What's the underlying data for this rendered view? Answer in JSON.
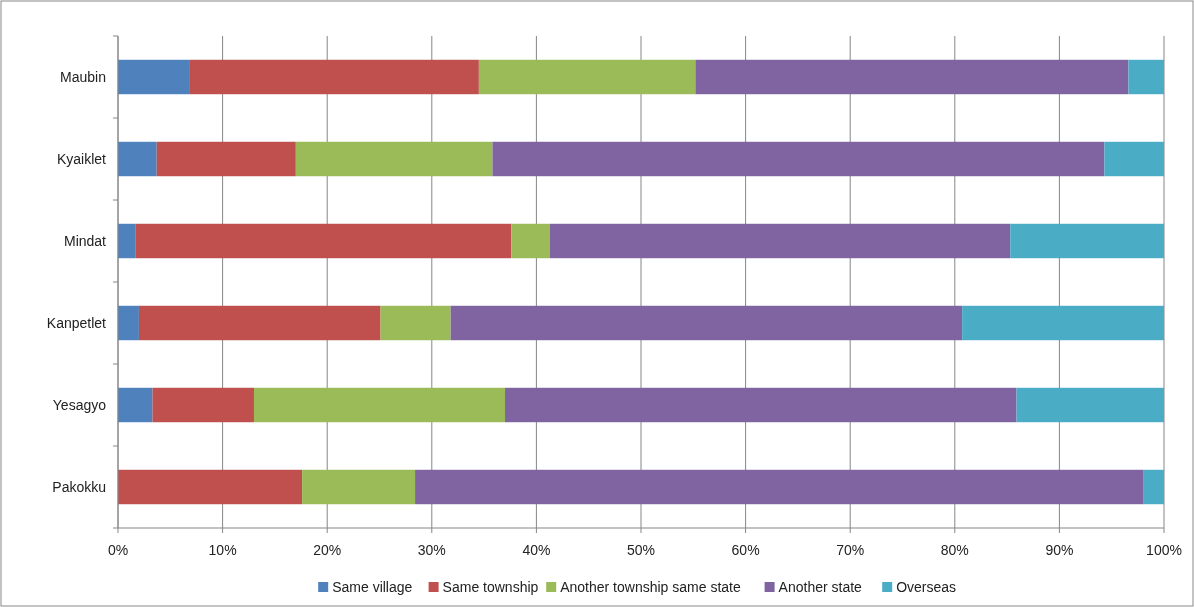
{
  "chart_data": {
    "type": "bar",
    "orientation": "horizontal",
    "stacked": true,
    "categories": [
      "Maubin",
      "Kyaiklet",
      "Mindat",
      "Kanpetlet",
      "Yesagyo",
      "Pakokku"
    ],
    "series": [
      {
        "name": "Same village",
        "color": "#4f81bd",
        "values": [
          6.8,
          3.7,
          1.7,
          2.0,
          3.3,
          0
        ]
      },
      {
        "name": "Same township",
        "color": "#c0504d",
        "values": [
          27.7,
          13.3,
          35.9,
          23.1,
          9.7,
          17.6
        ]
      },
      {
        "name": "Another township same state",
        "color": "#9bbb59",
        "values": [
          20.7,
          18.8,
          3.7,
          6.7,
          24.0,
          10.8
        ]
      },
      {
        "name": "Another state",
        "color": "#8064a2",
        "values": [
          41.4,
          58.5,
          44.0,
          48.9,
          48.9,
          69.6
        ]
      },
      {
        "name": "Overseas",
        "color": "#4bacc6",
        "values": [
          3.4,
          5.7,
          14.7,
          19.3,
          14.1,
          2.0
        ]
      }
    ],
    "xlim": [
      0,
      100
    ],
    "xticks": [
      {
        "value": 0,
        "label": "0%"
      },
      {
        "value": 10,
        "label": "10%"
      },
      {
        "value": 20,
        "label": "20%"
      },
      {
        "value": 30,
        "label": "30%"
      },
      {
        "value": 40,
        "label": "40%"
      },
      {
        "value": 50,
        "label": "50%"
      },
      {
        "value": 60,
        "label": "60%"
      },
      {
        "value": 70,
        "label": "70%"
      },
      {
        "value": 80,
        "label": "80%"
      },
      {
        "value": 90,
        "label": "90%"
      },
      {
        "value": 100,
        "label": "100%"
      }
    ],
    "grid": "x",
    "legend": "bottom"
  }
}
